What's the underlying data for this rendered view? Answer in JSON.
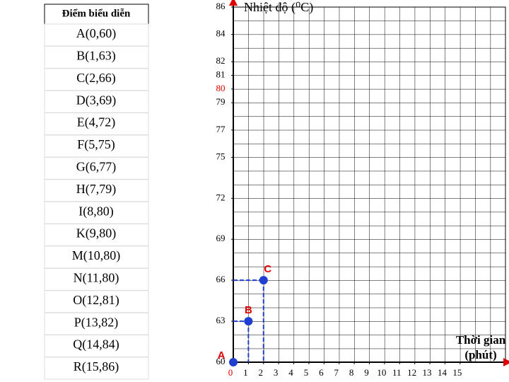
{
  "table": {
    "header": "Điểm biểu diễn",
    "rows": [
      "A(0,60)",
      "B(1,63)",
      "C(2,66)",
      "D(3,69)",
      "E(4,72)",
      "F(5,75)",
      "G(6,77)",
      "H(7,79)",
      "I(8,80)",
      "K(9,80)",
      "M(10,80)",
      "N(11,80)",
      "O(12,81)",
      "P(13,82)",
      "Q(14,84)",
      "R(15,86)"
    ]
  },
  "chart_data": {
    "type": "scatter",
    "ylabel": "Nhiệt độ (⁰C)",
    "xlabel": "Thời gian (phút)",
    "x": [
      0,
      1,
      2
    ],
    "values": [
      60,
      63,
      66
    ],
    "point_labels": [
      "A",
      "B",
      "C"
    ],
    "color": "#1f3fd0",
    "label_color": "#e00000",
    "xlim": [
      0,
      18
    ],
    "xticks": [
      0,
      1,
      2,
      3,
      4,
      5,
      6,
      7,
      8,
      9,
      10,
      11,
      12,
      13,
      14,
      15
    ],
    "ylim": [
      60,
      86
    ],
    "yticks": [
      60,
      63,
      66,
      69,
      72,
      75,
      77,
      79,
      80,
      81,
      82,
      84,
      86
    ],
    "highlight_ytick": 80,
    "highlight_color": "#e00000",
    "grid": true
  }
}
